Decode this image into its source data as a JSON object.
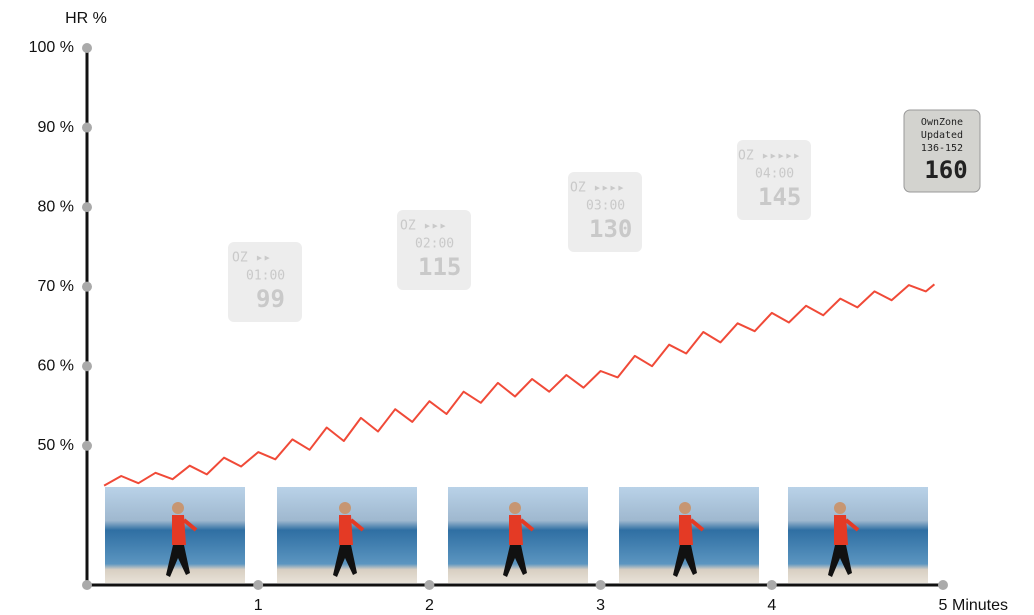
{
  "chart_data": {
    "type": "line",
    "ylabel": "HR %",
    "xlabel": "Minutes",
    "xlim": [
      0,
      5
    ],
    "ylim": [
      32.5,
      100
    ],
    "xticks": [
      1,
      2,
      3,
      4,
      5
    ],
    "yticks": [
      {
        "value": 50,
        "label": "50 %"
      },
      {
        "value": 60,
        "label": "60 %"
      },
      {
        "value": 70,
        "label": "70 %"
      },
      {
        "value": 80,
        "label": "80 %"
      },
      {
        "value": 90,
        "label": "90 %"
      },
      {
        "value": 100,
        "label": "100 %"
      }
    ],
    "color": "#f04a38",
    "x": [
      0.1,
      0.2,
      0.3,
      0.4,
      0.5,
      0.6,
      0.7,
      0.8,
      0.9,
      1.0,
      1.1,
      1.2,
      1.3,
      1.4,
      1.5,
      1.6,
      1.7,
      1.8,
      1.9,
      2.0,
      2.1,
      2.2,
      2.3,
      2.4,
      2.5,
      2.6,
      2.7,
      2.8,
      2.9,
      3.0,
      3.1,
      3.2,
      3.3,
      3.4,
      3.5,
      3.6,
      3.7,
      3.8,
      3.9,
      4.0,
      4.1,
      4.2,
      4.3,
      4.4,
      4.5,
      4.6,
      4.7,
      4.8,
      4.9,
      4.95
    ],
    "values": [
      45.0,
      46.2,
      45.3,
      46.6,
      45.8,
      47.5,
      46.4,
      48.5,
      47.4,
      49.2,
      48.3,
      50.8,
      49.5,
      52.3,
      50.6,
      53.5,
      51.8,
      54.6,
      53.0,
      55.6,
      54.0,
      56.8,
      55.4,
      57.9,
      56.2,
      58.4,
      56.8,
      58.9,
      57.3,
      59.4,
      58.6,
      61.3,
      60.0,
      62.7,
      61.6,
      64.3,
      63.0,
      65.4,
      64.4,
      66.7,
      65.5,
      67.6,
      66.4,
      68.5,
      67.4,
      69.4,
      68.3,
      70.2,
      69.4,
      70.3
    ]
  },
  "watches": [
    {
      "zone": "OZ ▸▸",
      "time": "01:00",
      "hr": "99"
    },
    {
      "zone": "OZ ▸▸▸",
      "time": "02:00",
      "hr": "115"
    },
    {
      "zone": "OZ ▸▸▸▸",
      "time": "03:00",
      "hr": "130"
    },
    {
      "zone": "OZ ▸▸▸▸▸",
      "time": "04:00",
      "hr": "145"
    },
    {
      "zone": "OwnZone",
      "time": "Updated",
      "range": "136-152",
      "hr": "160"
    }
  ]
}
